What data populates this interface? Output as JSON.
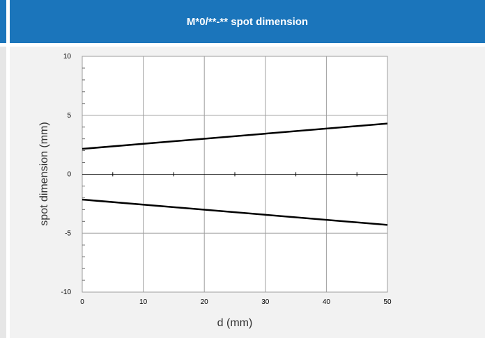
{
  "header": {
    "title": "M*0/**-** spot dimension"
  },
  "colors": {
    "header_bg": "#1b75bb",
    "panel_bg": "#f2f2f2",
    "grid": "#9e9e9e",
    "line": "#000000"
  },
  "chart_data": {
    "type": "line",
    "title": "",
    "xlabel": "d (mm)",
    "ylabel": "spot dimension (mm)",
    "xlim": [
      0,
      50
    ],
    "ylim": [
      -10,
      10
    ],
    "xticks": [
      0,
      10,
      20,
      30,
      40,
      50
    ],
    "yticks": [
      10,
      5,
      0,
      -5,
      -10
    ],
    "xtick_labels": [
      "0",
      "10",
      "20",
      "30",
      "40",
      "50"
    ],
    "ytick_labels": [
      "10",
      "5",
      "0",
      "-5",
      "-10"
    ],
    "grid": true,
    "series": [
      {
        "x": [
          0,
          50
        ],
        "y": [
          2.15,
          4.3
        ]
      },
      {
        "x": [
          0,
          50
        ],
        "y": [
          -2.15,
          -4.3
        ]
      }
    ]
  }
}
